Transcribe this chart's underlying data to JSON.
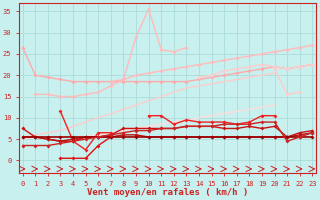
{
  "xlabel": "Vent moyen/en rafales ( km/h )",
  "background_color": "#c8f0ee",
  "grid_color": "#aadcda",
  "x_ticks": [
    0,
    1,
    2,
    3,
    4,
    5,
    6,
    7,
    8,
    9,
    10,
    11,
    12,
    13,
    14,
    15,
    16,
    17,
    18,
    19,
    20,
    21,
    22,
    23
  ],
  "ylim": [
    -3,
    37
  ],
  "xlim": [
    -0.3,
    23.3
  ],
  "yticks": [
    0,
    5,
    10,
    15,
    20,
    25,
    30,
    35
  ],
  "series": [
    {
      "name": "lightest_long",
      "color": "#ffaaaa",
      "alpha": 1.0,
      "lw": 1.0,
      "marker": "D",
      "ms": 2.0,
      "data": [
        26.5,
        20.0,
        19.5,
        19.0,
        18.5,
        18.5,
        18.5,
        18.5,
        18.5,
        18.5,
        18.5,
        18.5,
        18.5,
        18.5,
        19.0,
        19.5,
        20.0,
        20.5,
        21.0,
        21.5,
        22.0,
        21.5,
        22.0,
        22.5
      ]
    },
    {
      "name": "light2_long",
      "color": "#ffbbbb",
      "alpha": 1.0,
      "lw": 1.0,
      "marker": "D",
      "ms": 2.0,
      "data": [
        null,
        15.5,
        15.5,
        15.0,
        15.0,
        15.5,
        16.0,
        17.5,
        19.0,
        20.0,
        20.5,
        21.0,
        21.5,
        22.0,
        22.5,
        23.0,
        23.5,
        24.0,
        24.5,
        25.0,
        25.5,
        26.0,
        26.5,
        27.0
      ]
    },
    {
      "name": "light3_zigzag",
      "color": "#ffbbbb",
      "alpha": 1.0,
      "lw": 1.0,
      "marker": "D",
      "ms": 2.0,
      "data": [
        null,
        null,
        null,
        null,
        null,
        null,
        null,
        18.5,
        19.0,
        29.0,
        35.5,
        26.0,
        25.5,
        26.5,
        null,
        null,
        null,
        null,
        null,
        null,
        null,
        null,
        null,
        null
      ]
    },
    {
      "name": "light4_mid",
      "color": "#ffcccc",
      "alpha": 1.0,
      "lw": 1.0,
      "marker": "D",
      "ms": 2.0,
      "data": [
        null,
        null,
        null,
        null,
        null,
        null,
        null,
        null,
        null,
        null,
        null,
        null,
        null,
        null,
        19.5,
        20.0,
        21.0,
        21.5,
        22.0,
        22.5,
        22.0,
        21.5,
        22.0,
        22.5
      ]
    },
    {
      "name": "light5_lower",
      "color": "#ffcccc",
      "alpha": 1.0,
      "lw": 1.0,
      "marker": "D",
      "ms": 2.0,
      "data": [
        null,
        null,
        null,
        null,
        null,
        null,
        null,
        null,
        null,
        null,
        null,
        null,
        null,
        null,
        null,
        null,
        null,
        null,
        null,
        null,
        21.5,
        15.5,
        16.0,
        null
      ]
    },
    {
      "name": "mid_gradual",
      "color": "#ffcccc",
      "alpha": 1.0,
      "lw": 1.0,
      "marker": null,
      "ms": 0,
      "data": [
        5.5,
        6.0,
        6.5,
        7.0,
        8.0,
        9.0,
        10.0,
        11.0,
        12.0,
        13.0,
        14.0,
        15.0,
        16.0,
        17.0,
        17.5,
        18.0,
        18.5,
        19.0,
        19.5,
        20.0,
        20.5,
        null,
        null,
        null
      ]
    },
    {
      "name": "mid_lower_gradual",
      "color": "#ffdddd",
      "alpha": 1.0,
      "lw": 1.0,
      "marker": null,
      "ms": 0,
      "data": [
        5.0,
        5.5,
        5.5,
        5.5,
        5.5,
        5.5,
        6.0,
        6.5,
        7.0,
        7.5,
        8.0,
        8.5,
        9.0,
        9.5,
        10.0,
        10.5,
        11.0,
        11.5,
        12.0,
        12.5,
        13.0,
        null,
        null,
        null
      ]
    },
    {
      "name": "dark_zigzag1",
      "color": "#ee2222",
      "alpha": 1.0,
      "lw": 1.0,
      "marker": "D",
      "ms": 2.0,
      "data": [
        null,
        null,
        null,
        11.5,
        4.5,
        2.5,
        6.5,
        6.5,
        null,
        null,
        10.5,
        10.5,
        8.5,
        9.5,
        9.0,
        9.0,
        9.0,
        8.5,
        9.0,
        10.5,
        10.5,
        null,
        null,
        null
      ]
    },
    {
      "name": "dark_main1",
      "color": "#cc1111",
      "alpha": 1.0,
      "lw": 1.0,
      "marker": "D",
      "ms": 2.0,
      "data": [
        7.5,
        5.5,
        5.0,
        4.5,
        4.5,
        5.5,
        5.5,
        6.0,
        7.5,
        7.5,
        7.5,
        7.5,
        7.5,
        8.0,
        8.0,
        8.0,
        7.5,
        7.5,
        8.0,
        7.5,
        8.0,
        5.5,
        6.5,
        7.0
      ]
    },
    {
      "name": "dark_main2",
      "color": "#bb1111",
      "alpha": 1.0,
      "lw": 1.0,
      "marker": "D",
      "ms": 2.0,
      "data": [
        5.5,
        5.5,
        5.0,
        4.5,
        5.0,
        5.5,
        5.5,
        5.5,
        6.0,
        6.0,
        5.5,
        5.5,
        5.5,
        5.5,
        5.5,
        5.5,
        5.5,
        5.5,
        5.5,
        5.5,
        5.5,
        5.5,
        6.0,
        6.5
      ]
    },
    {
      "name": "dark_low",
      "color": "#dd1111",
      "alpha": 1.0,
      "lw": 1.0,
      "marker": "D",
      "ms": 2.0,
      "data": [
        null,
        null,
        null,
        0.5,
        0.5,
        0.5,
        3.5,
        5.5,
        null,
        null,
        null,
        null,
        null,
        null,
        null,
        null,
        null,
        null,
        null,
        null,
        null,
        null,
        null,
        null
      ]
    },
    {
      "name": "baseline_flat",
      "color": "#990000",
      "alpha": 1.0,
      "lw": 1.2,
      "marker": "D",
      "ms": 2.0,
      "data": [
        5.5,
        5.5,
        5.5,
        5.5,
        5.5,
        5.5,
        5.5,
        5.5,
        5.5,
        5.5,
        5.5,
        5.5,
        5.5,
        5.5,
        5.5,
        5.5,
        5.5,
        5.5,
        5.5,
        5.5,
        5.5,
        5.5,
        5.5,
        5.5
      ]
    },
    {
      "name": "gradual_rising_dark",
      "color": "#cc2222",
      "alpha": 1.0,
      "lw": 1.0,
      "marker": "D",
      "ms": 2.0,
      "data": [
        3.5,
        3.5,
        3.5,
        4.0,
        4.5,
        5.0,
        5.5,
        6.0,
        6.5,
        7.0,
        7.0,
        7.5,
        7.5,
        8.0,
        8.0,
        8.0,
        8.5,
        8.5,
        8.5,
        9.0,
        9.0,
        4.5,
        5.5,
        6.5
      ]
    }
  ],
  "arrows": {
    "y": -2.0,
    "color": "#cc2222",
    "lw": 0.7
  },
  "tick_fontsize": 5.0,
  "label_fontsize": 6.5
}
